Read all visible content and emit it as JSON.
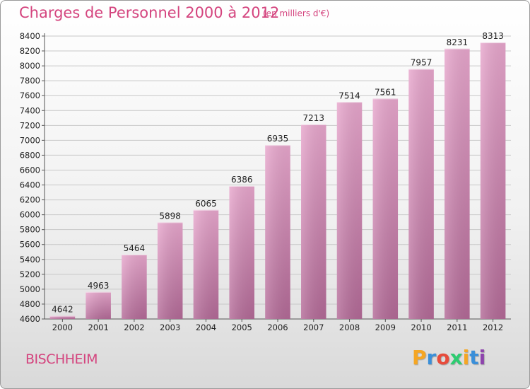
{
  "header": {
    "title": "Charges de Personnel 2000 à 2012",
    "unit": "(en milliers d'€)"
  },
  "footer": {
    "city": "BISCHHEIM",
    "logo": "Proxiti",
    "logo_colors": [
      "#f5a623",
      "#3a8fd9",
      "#e74c3c",
      "#2ecc71",
      "#f5a623",
      "#3a8fd9",
      "#8e44ad"
    ]
  },
  "colors": {
    "bar_top": "#e8a7cd",
    "bar_bottom": "#b36a97",
    "text_accent": "#d4447e",
    "grid": "#c8c8c8"
  },
  "chart_data": {
    "type": "bar",
    "categories": [
      "2000",
      "2001",
      "2002",
      "2003",
      "2004",
      "2005",
      "2006",
      "2007",
      "2008",
      "2009",
      "2010",
      "2011",
      "2012"
    ],
    "values": [
      4642,
      4963,
      5464,
      5898,
      6065,
      6386,
      6935,
      7213,
      7514,
      7561,
      7957,
      8231,
      8313
    ],
    "title": "Charges de Personnel 2000 à 2012",
    "ylim": [
      4600,
      8400
    ],
    "ytick_step": 200,
    "grid": true
  }
}
